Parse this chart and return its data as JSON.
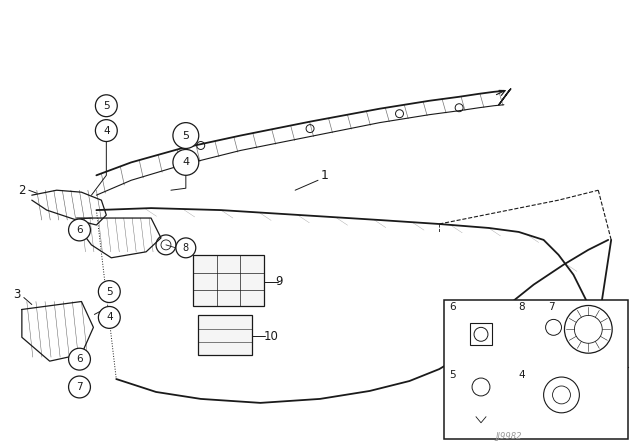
{
  "bg_color": "#ffffff",
  "diagram_color": "#1a1a1a",
  "watermark": "JJ9982",
  "fig_w": 6.4,
  "fig_h": 4.48,
  "dpi": 100
}
